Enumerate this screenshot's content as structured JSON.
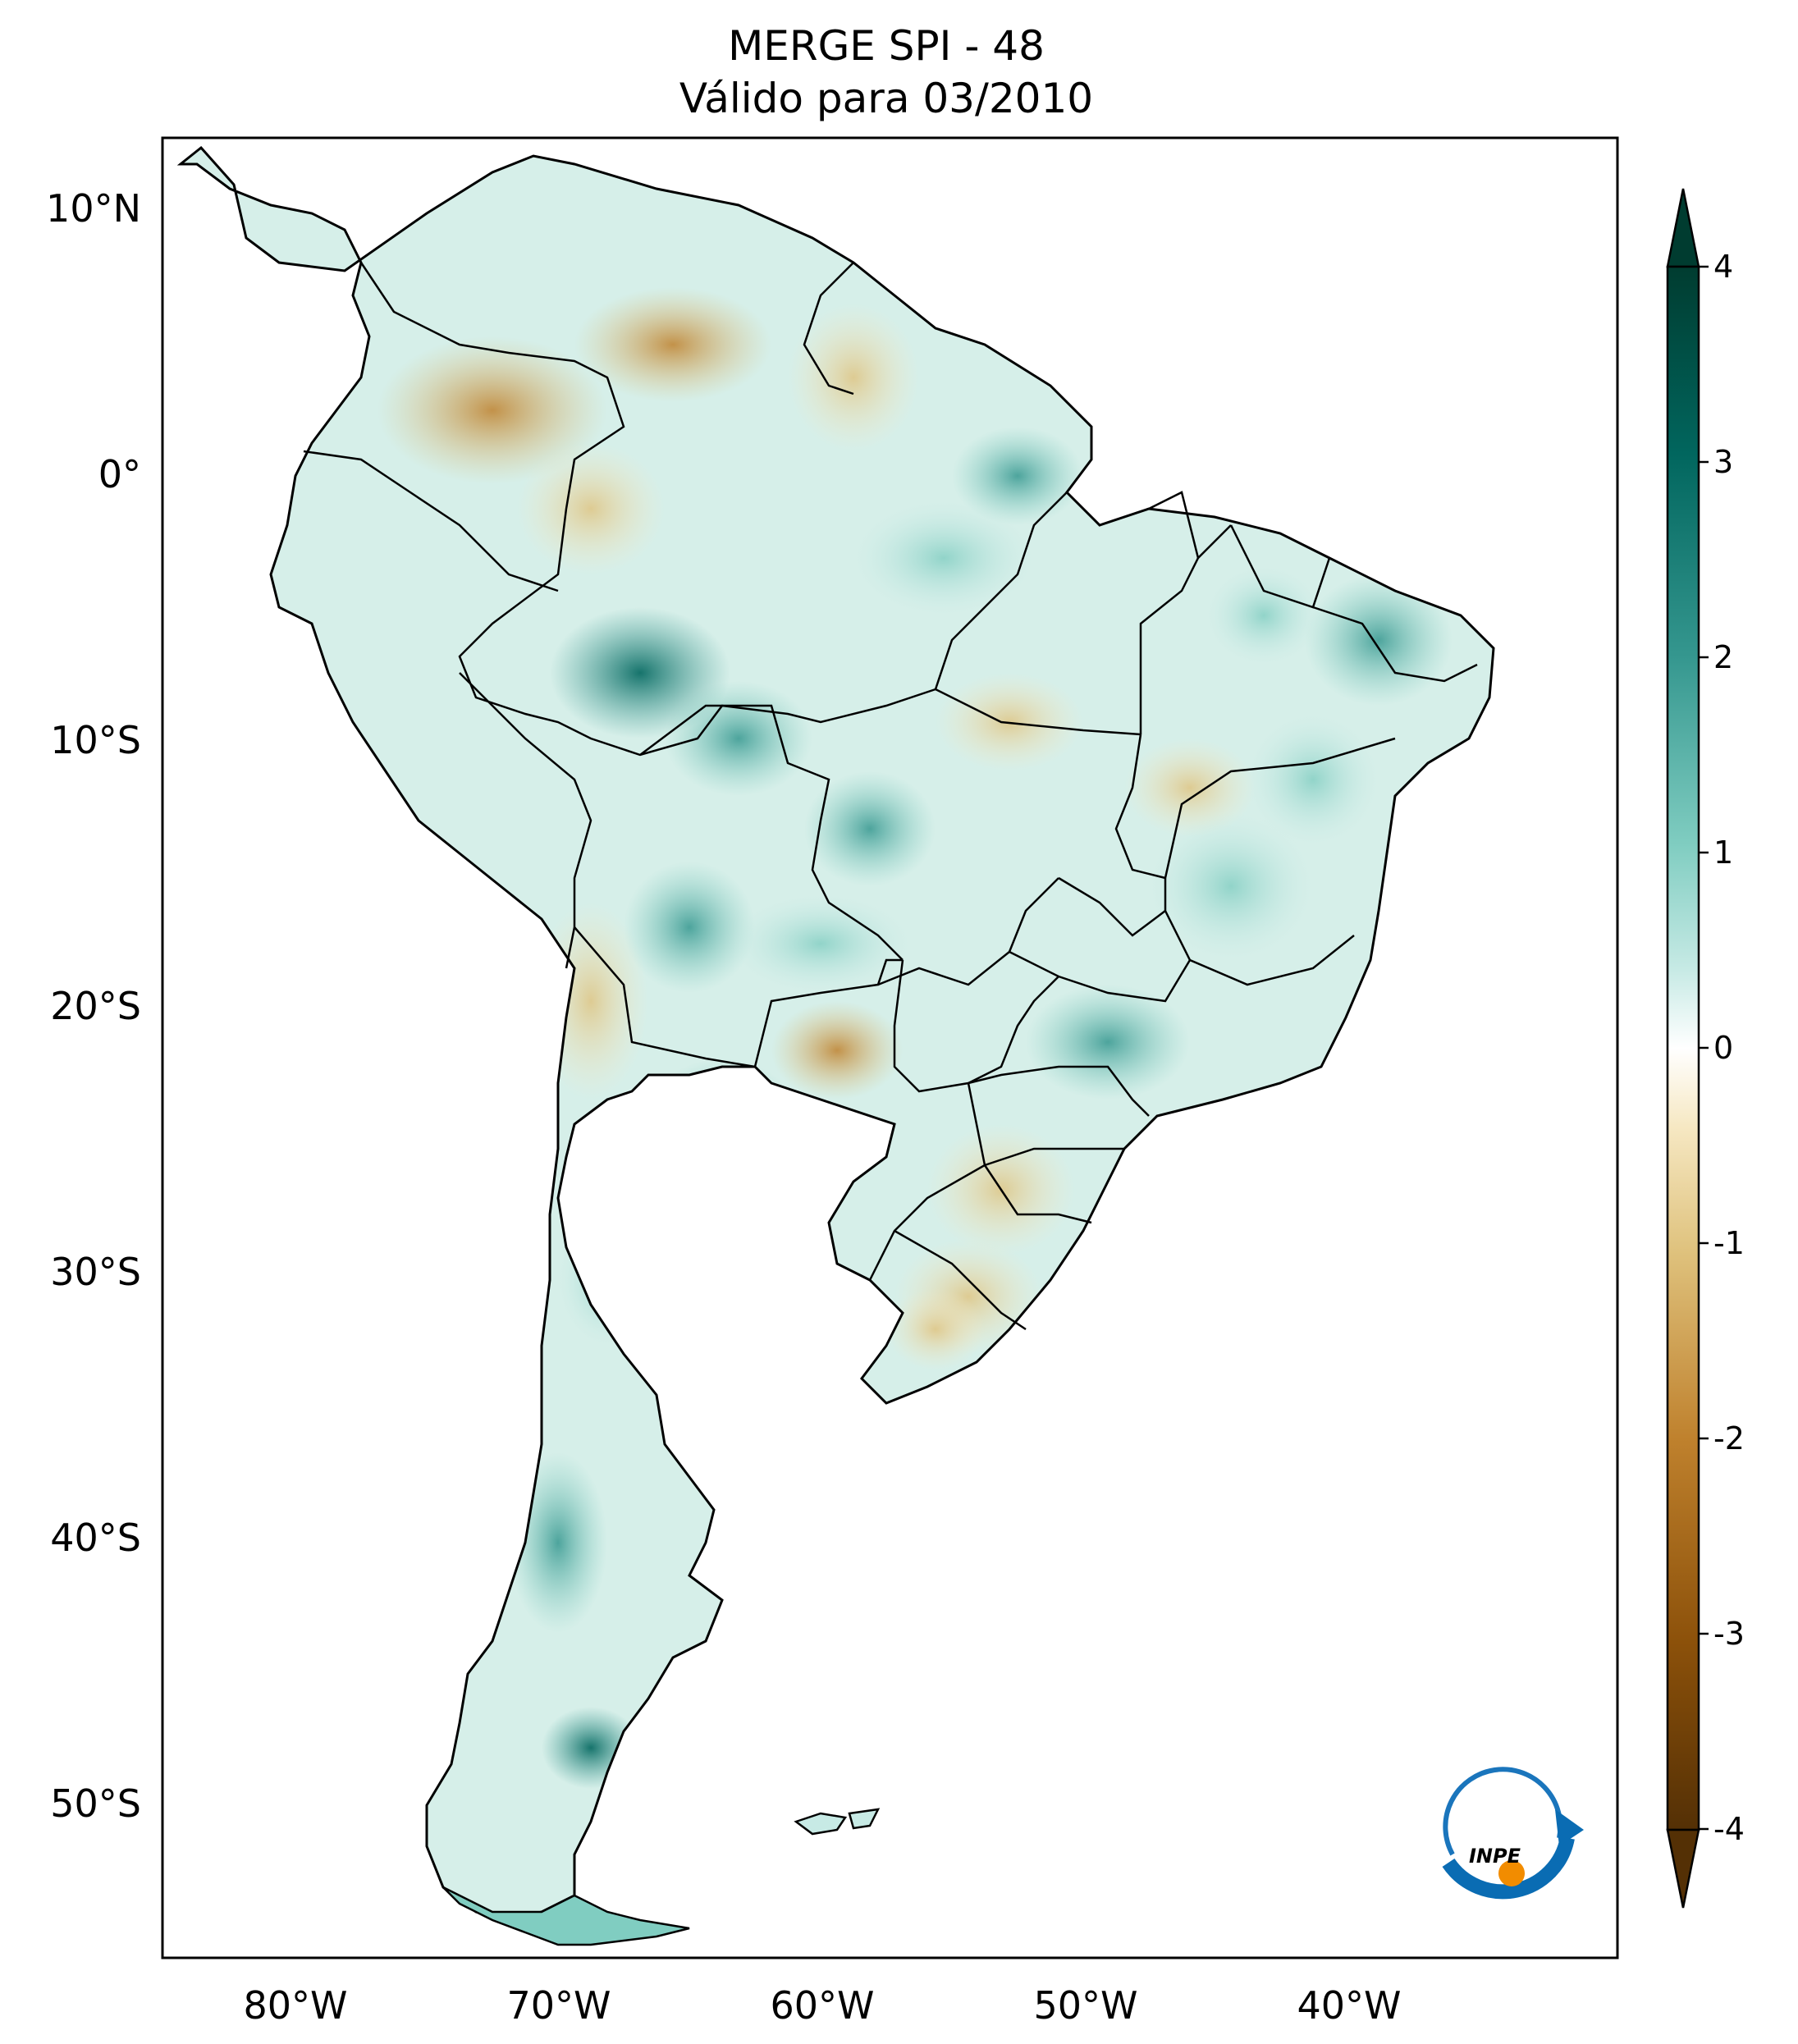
{
  "title": {
    "line1": "MERGE   SPI - 48",
    "line2": "Válido para 03/2010"
  },
  "axes": {
    "lat_labels": [
      "10°N",
      "0°",
      "10°S",
      "20°S",
      "30°S",
      "40°S",
      "50°S"
    ],
    "lon_labels": [
      "80°W",
      "70°W",
      "60°W",
      "50°W",
      "40°W"
    ]
  },
  "colorbar": {
    "ticks": [
      "4",
      "3",
      "2",
      "1",
      "0",
      "-1",
      "-2",
      "-3",
      "-4"
    ],
    "colors": {
      "max": "#003c30",
      "high": "#01665e",
      "mid_high": "#35978f",
      "low_high": "#80cdc1",
      "near_zero_high": "#c7eae5",
      "zero": "#ffffff",
      "near_zero_low": "#f6e8c3",
      "low_low": "#dfc27d",
      "mid_low": "#bf812d",
      "low": "#8c510a",
      "min": "#543005"
    }
  },
  "logo": {
    "text": "INPE",
    "icon": "inpe-logo-icon"
  }
}
